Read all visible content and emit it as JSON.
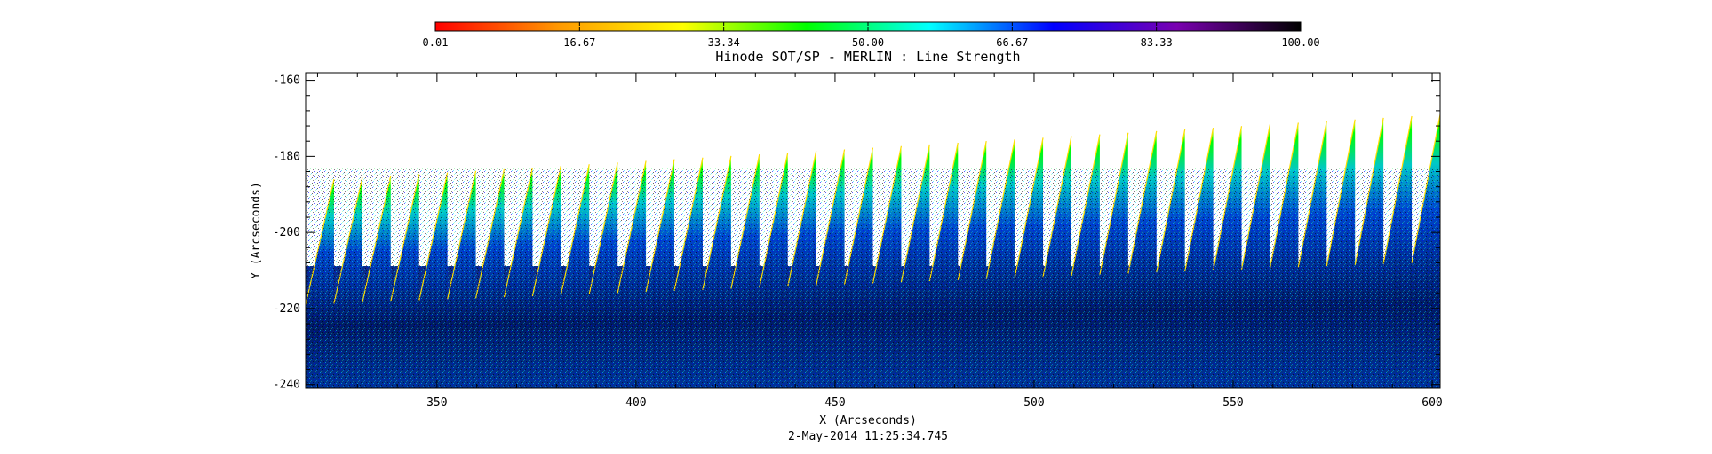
{
  "chart_data": {
    "type": "heatmap",
    "title": "Hinode SOT/SP - MERLIN : Line Strength",
    "xlabel": "X (Arcseconds)",
    "ylabel": "Y (Arcseconds)",
    "footer": "2-May-2014 11:25:34.745",
    "xlim": [
      317,
      602
    ],
    "ylim": [
      -241,
      -158
    ],
    "x_ticks": [
      350,
      400,
      450,
      500,
      550,
      600
    ],
    "y_ticks": [
      -160,
      -180,
      -200,
      -220,
      -240
    ],
    "x_tick_labels": [
      "350",
      "400",
      "450",
      "500",
      "550",
      "600"
    ],
    "y_tick_labels": [
      "-160",
      "-180",
      "-200",
      "-220",
      "-240"
    ],
    "colorbar": {
      "range": [
        0.01,
        100.0
      ],
      "tick_labels": [
        "0.01",
        "16.67",
        "33.34",
        "50.00",
        "66.67",
        "83.33",
        "100.00"
      ],
      "colors": [
        "#ff0000",
        "#ff9900",
        "#ffff00",
        "#00ff00",
        "#00ffff",
        "#0000ff",
        "#7a00b0",
        "#000000"
      ]
    },
    "stripes": {
      "count": 40,
      "first_x": 317,
      "last_x": 602,
      "top_y_start": -186,
      "top_y_end": -169,
      "bottom_y_start": -219,
      "bottom_y_end": -208
    }
  }
}
